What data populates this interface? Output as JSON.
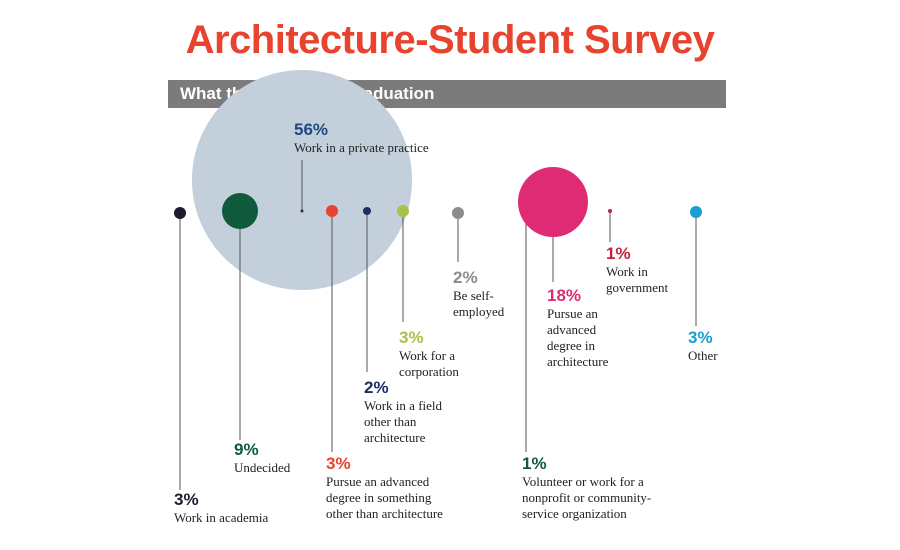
{
  "title": "Architecture-Student Survey",
  "subtitle": "What they'll do after graduation",
  "colors": {
    "title": "#e8432e",
    "bar": "#7b7b7b",
    "big_circle": "#c3cfda",
    "line": "#555555"
  },
  "chart_data": {
    "type": "bubble",
    "unit": "%",
    "categories": [
      {
        "value": 3,
        "label": "3%",
        "desc": "Work in academia",
        "color": "#1b1d2e"
      },
      {
        "value": 9,
        "label": "9%",
        "desc": "Undecided",
        "color": "#0f5a3c"
      },
      {
        "value": 56,
        "label": "56%",
        "desc": "Work in a private practice",
        "color": "#1d4a85"
      },
      {
        "value": 3,
        "label": "3%",
        "desc": "Pursue an advanced\ndegree in something\nother than architecture",
        "color": "#e8432e"
      },
      {
        "value": 2,
        "label": "2%",
        "desc": "Work in a field\nother than\narchitecture",
        "color": "#1b2f66"
      },
      {
        "value": 3,
        "label": "3%",
        "desc": "Work for a\ncorporation",
        "color": "#a9c04a"
      },
      {
        "value": 2,
        "label": "2%",
        "desc": "Be self-\nemployed",
        "color": "#8c8c8c"
      },
      {
        "value": 1,
        "label": "1%",
        "desc": "Volunteer or work for a\nnonprofit or community-\nservice organization",
        "color": "#0f5a3c"
      },
      {
        "value": 18,
        "label": "18%",
        "desc": "Pursue an\nadvanced\ndegree in\narchitecture",
        "color": "#de2b74"
      },
      {
        "value": 1,
        "label": "1%",
        "desc": "Work in\ngovernment",
        "color": "#c4233d"
      },
      {
        "value": 3,
        "label": "3%",
        "desc": "Other",
        "color": "#1a9ed1"
      }
    ]
  }
}
